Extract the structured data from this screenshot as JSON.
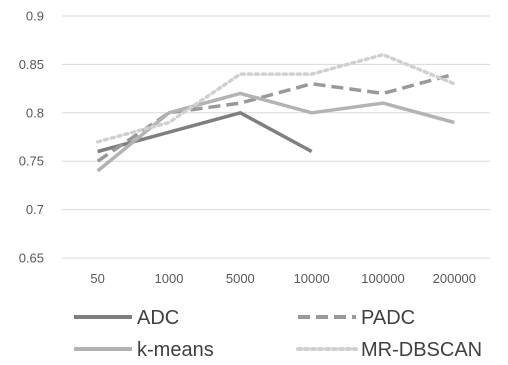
{
  "chart_data": {
    "type": "line",
    "title": "",
    "xlabel": "",
    "ylabel": "",
    "categories": [
      "50",
      "1000",
      "5000",
      "10000",
      "100000",
      "200000"
    ],
    "ylim": [
      0.65,
      0.9
    ],
    "yticks": [
      "0.65",
      "0.7",
      "0.75",
      "0.8",
      "0.85",
      "0.9"
    ],
    "grid": true,
    "legend_position": "bottom",
    "series": [
      {
        "name": "ADC",
        "values": [
          0.76,
          0.78,
          0.8,
          0.76,
          null,
          null
        ],
        "color": "#7f7f7f",
        "dash": "solid"
      },
      {
        "name": "PADC",
        "values": [
          0.75,
          0.8,
          0.81,
          0.83,
          0.82,
          0.84
        ],
        "color": "#999999",
        "dash": "dashed"
      },
      {
        "name": "k-means",
        "values": [
          0.74,
          0.8,
          0.82,
          0.8,
          0.81,
          0.79
        ],
        "color": "#b3b3b3",
        "dash": "solid"
      },
      {
        "name": "MR-DBSCAN",
        "values": [
          0.77,
          0.79,
          0.84,
          0.84,
          0.86,
          0.83
        ],
        "color": "#d0d0d0",
        "dash": "dotted"
      }
    ]
  }
}
